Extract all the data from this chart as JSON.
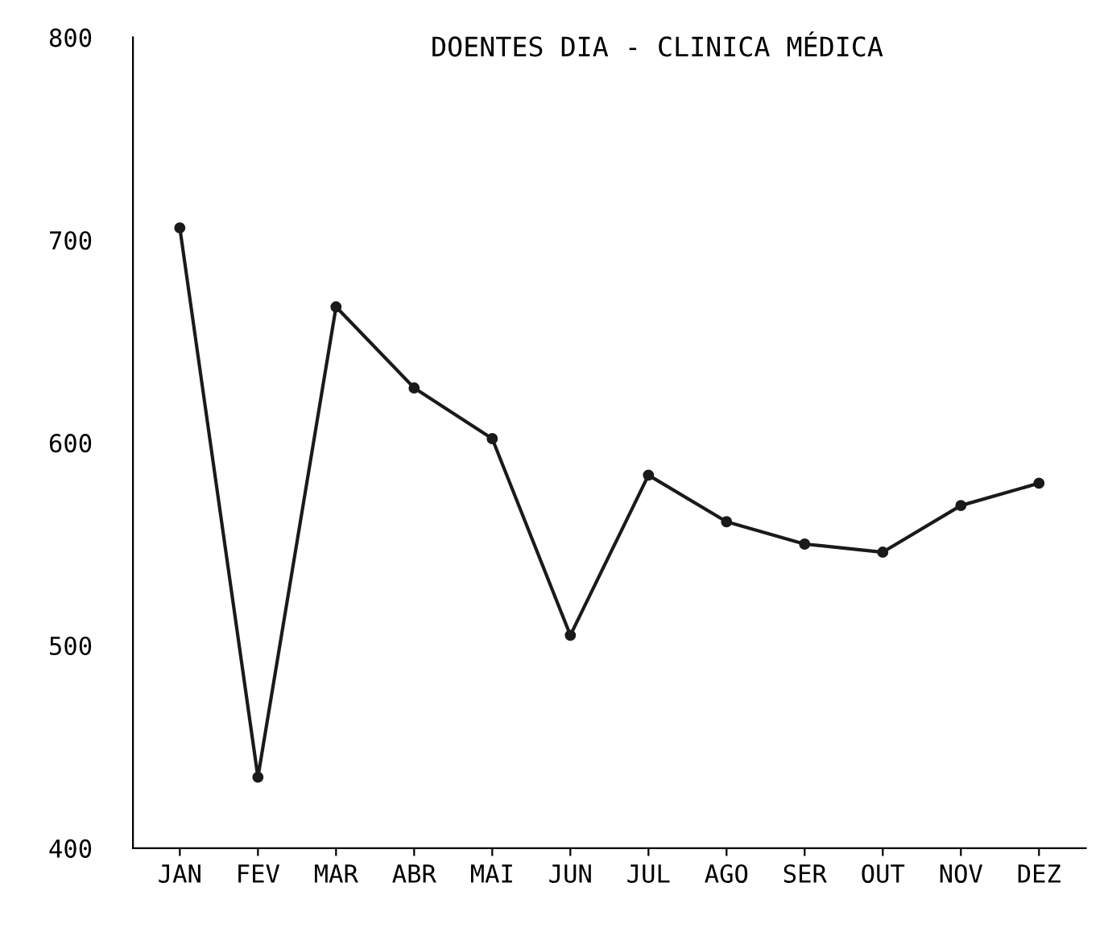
{
  "chart_data": {
    "type": "line",
    "title": "DOENTES DIA - CLINICA MÉDICA",
    "categories": [
      "JAN",
      "FEV",
      "MAR",
      "ABR",
      "MAI",
      "JUN",
      "JUL",
      "AGO",
      "SER",
      "OUT",
      "NOV",
      "DEZ"
    ],
    "series": [
      {
        "color": "#1a1a1a",
        "values": [
          706,
          435,
          667,
          627,
          602,
          505,
          584,
          561,
          550,
          546,
          569,
          580
        ]
      }
    ],
    "ylim": [
      400,
      800
    ],
    "yticks": [
      400,
      500,
      600,
      700,
      800
    ],
    "grid": false,
    "legend": false,
    "marker": "circle",
    "line_style": "solid"
  }
}
